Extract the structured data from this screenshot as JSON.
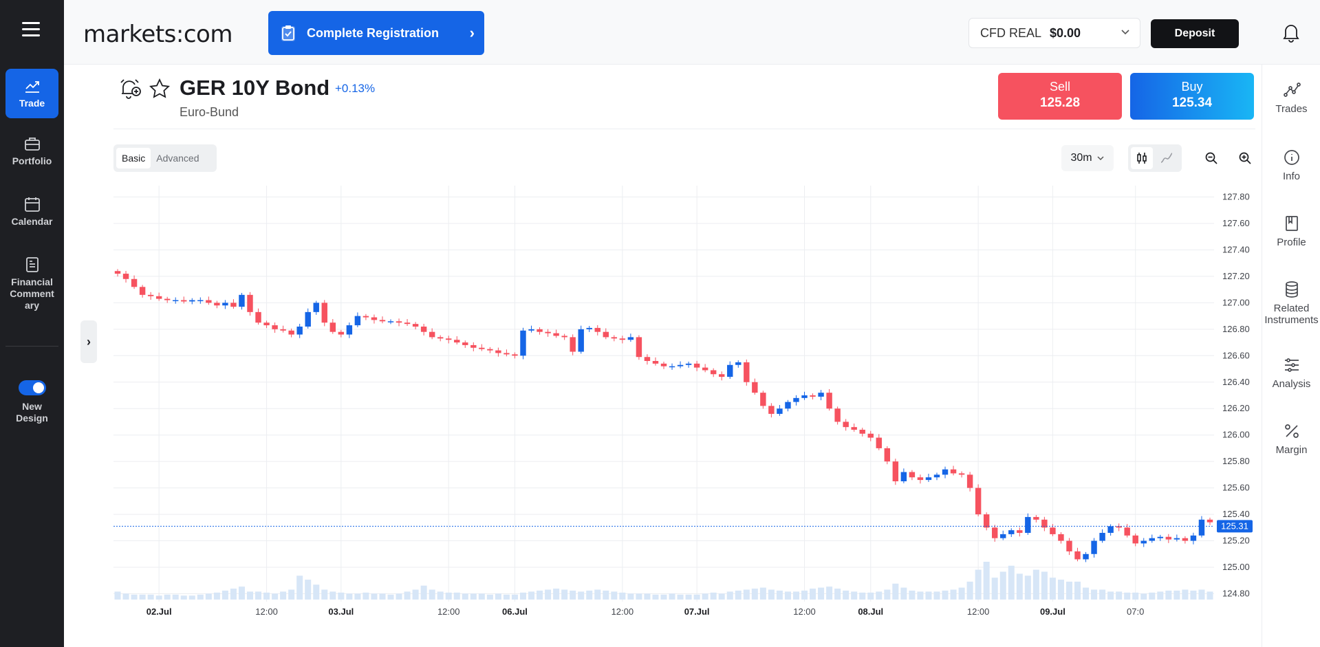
{
  "left_nav": {
    "items": [
      {
        "id": "trade",
        "label": "Trade",
        "icon": "chart-line-icon",
        "active": true
      },
      {
        "id": "portfolio",
        "label": "Portfolio",
        "icon": "briefcase-icon"
      },
      {
        "id": "calendar",
        "label": "Calendar",
        "icon": "calendar-icon"
      },
      {
        "id": "financial-commentary",
        "label": "Financial Comment ary",
        "icon": "document-icon"
      }
    ],
    "new_design_label": "New Design",
    "new_design_enabled": true
  },
  "header": {
    "logo_text": "markets:com",
    "registration_label": "Complete Registration",
    "account_type": "CFD REAL",
    "account_balance": "$0.00",
    "deposit_label": "Deposit"
  },
  "instrument": {
    "name": "GER 10Y Bond",
    "change": "+0.13%",
    "subtitle": "Euro-Bund",
    "sell_label": "Sell",
    "sell_price": "125.28",
    "buy_label": "Buy",
    "buy_price": "125.34"
  },
  "chart_toolbar": {
    "modes": [
      "Basic",
      "Advanced"
    ],
    "active_mode": "Basic",
    "interval": "30m",
    "chart_types": [
      "candlestick-icon",
      "line-chart-icon"
    ],
    "active_chart_type": "candlestick-icon"
  },
  "right_nav": {
    "items": [
      {
        "id": "trades",
        "label": "Trades",
        "icon": "trades-icon"
      },
      {
        "id": "info",
        "label": "Info",
        "icon": "info-icon"
      },
      {
        "id": "profile",
        "label": "Profile",
        "icon": "profile-book-icon"
      },
      {
        "id": "related",
        "label": "Related Instruments",
        "icon": "database-icon"
      },
      {
        "id": "analysis",
        "label": "Analysis",
        "icon": "sliders-icon"
      },
      {
        "id": "margin",
        "label": "Margin",
        "icon": "percent-icon"
      }
    ]
  },
  "chart_data": {
    "type": "candlestick",
    "interval": "30m",
    "y_ticks": [
      "127.80",
      "127.60",
      "127.40",
      "127.20",
      "127.00",
      "126.80",
      "126.60",
      "126.40",
      "126.20",
      "126.00",
      "125.80",
      "125.60",
      "125.40",
      "125.20",
      "125.00",
      "124.80"
    ],
    "ylim": [
      124.74,
      127.86
    ],
    "x_ticks": [
      {
        "label": "02.Jul",
        "bold": true
      },
      {
        "label": "12:00",
        "bold": false
      },
      {
        "label": "03.Jul",
        "bold": true
      },
      {
        "label": "12:00",
        "bold": false
      },
      {
        "label": "06.Jul",
        "bold": true
      },
      {
        "label": "12:00",
        "bold": false
      },
      {
        "label": "07.Jul",
        "bold": true
      },
      {
        "label": "12:00",
        "bold": false
      },
      {
        "label": "08.Jul",
        "bold": true
      },
      {
        "label": "12:00",
        "bold": false
      },
      {
        "label": "09.Jul",
        "bold": true
      },
      {
        "label": "07:0",
        "bold": false
      }
    ],
    "x_tick_candle_index": [
      5,
      18,
      27,
      40,
      48,
      61,
      70,
      83,
      91,
      104,
      113,
      123
    ],
    "current_price": "125.31",
    "current_price_value": 125.31,
    "colors": {
      "up": "#1565e6",
      "down": "#f6525f",
      "volume": "#d7e6f7",
      "current_line": "#1565e6"
    },
    "closes": [
      127.22,
      127.18,
      127.12,
      127.06,
      127.05,
      127.03,
      127.02,
      127.02,
      127.01,
      127.02,
      127.02,
      127.0,
      126.98,
      127.0,
      126.97,
      127.06,
      126.93,
      126.85,
      126.83,
      126.8,
      126.79,
      126.76,
      126.82,
      126.93,
      127.0,
      126.85,
      126.78,
      126.76,
      126.83,
      126.9,
      126.89,
      126.87,
      126.86,
      126.86,
      126.85,
      126.84,
      126.82,
      126.78,
      126.74,
      126.73,
      126.72,
      126.7,
      126.68,
      126.66,
      126.65,
      126.64,
      126.62,
      126.61,
      126.6,
      126.79,
      126.8,
      126.78,
      126.77,
      126.75,
      126.74,
      126.63,
      126.8,
      126.81,
      126.78,
      126.74,
      126.73,
      126.72,
      126.74,
      126.59,
      126.56,
      126.54,
      126.52,
      126.52,
      126.53,
      126.54,
      126.51,
      126.49,
      126.46,
      126.44,
      126.53,
      126.55,
      126.4,
      126.32,
      126.22,
      126.16,
      126.2,
      126.25,
      126.28,
      126.3,
      126.29,
      126.32,
      126.2,
      126.1,
      126.06,
      126.04,
      126.01,
      125.98,
      125.9,
      125.8,
      125.65,
      125.72,
      125.68,
      125.66,
      125.68,
      125.7,
      125.74,
      125.71,
      125.7,
      125.6,
      125.4,
      125.3,
      125.22,
      125.25,
      125.28,
      125.26,
      125.38,
      125.36,
      125.3,
      125.25,
      125.2,
      125.12,
      125.06,
      125.1,
      125.2,
      125.26,
      125.31,
      125.3,
      125.24,
      125.18,
      125.2,
      125.22,
      125.23,
      125.21,
      125.22,
      125.2,
      125.24,
      125.36,
      125.34
    ],
    "volumes": [
      8,
      6,
      5,
      5,
      5,
      4,
      5,
      5,
      4,
      4,
      5,
      6,
      7,
      9,
      11,
      13,
      8,
      8,
      7,
      6,
      8,
      10,
      24,
      20,
      15,
      10,
      8,
      7,
      6,
      6,
      7,
      6,
      6,
      5,
      6,
      8,
      10,
      14,
      10,
      8,
      7,
      7,
      6,
      6,
      6,
      5,
      6,
      5,
      5,
      7,
      8,
      9,
      10,
      11,
      10,
      9,
      8,
      9,
      10,
      9,
      8,
      7,
      6,
      6,
      6,
      5,
      5,
      6,
      5,
      5,
      5,
      6,
      7,
      6,
      8,
      9,
      10,
      11,
      12,
      10,
      9,
      8,
      8,
      9,
      11,
      12,
      13,
      11,
      9,
      8,
      7,
      7,
      8,
      10,
      16,
      12,
      9,
      8,
      8,
      8,
      9,
      10,
      12,
      18,
      30,
      38,
      22,
      28,
      34,
      26,
      24,
      30,
      28,
      22,
      20,
      18,
      18,
      12,
      10,
      10,
      8,
      8,
      7,
      7,
      6,
      7,
      8,
      9,
      9,
      10,
      9,
      10,
      8
    ]
  }
}
